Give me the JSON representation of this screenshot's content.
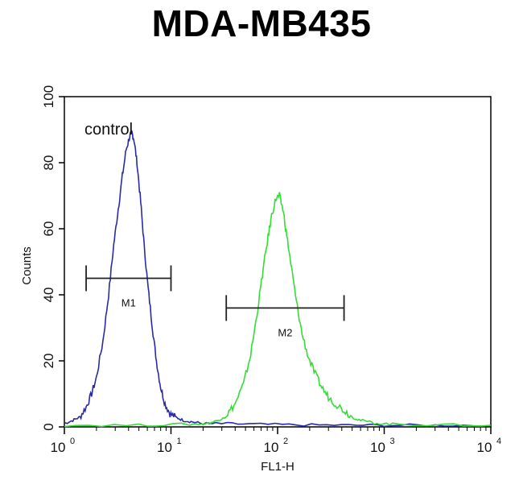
{
  "chart_data": {
    "type": "line",
    "title": "MDA-MB435",
    "annotation": "control",
    "xlabel": "FL1-H",
    "ylabel": "Counts",
    "x_scale": "log",
    "xlim": [
      1,
      10000
    ],
    "ylim": [
      0,
      100
    ],
    "x_ticks": [
      {
        "value": 1,
        "base": "10",
        "exp": "0"
      },
      {
        "value": 10,
        "base": "10",
        "exp": "1"
      },
      {
        "value": 100,
        "base": "10",
        "exp": "2"
      },
      {
        "value": 1000,
        "base": "10",
        "exp": "3"
      },
      {
        "value": 10000,
        "base": "10",
        "exp": "4"
      }
    ],
    "y_ticks": [
      "0",
      "20",
      "40",
      "60",
      "80",
      "100"
    ],
    "grid": false,
    "series": [
      {
        "color": "#2a2aa8",
        "points": [
          [
            1.0,
            1
          ],
          [
            1.2,
            2
          ],
          [
            1.4,
            3
          ],
          [
            1.6,
            6
          ],
          [
            1.8,
            10
          ],
          [
            2.0,
            15
          ],
          [
            2.3,
            26
          ],
          [
            2.6,
            40
          ],
          [
            2.9,
            55
          ],
          [
            3.2,
            66
          ],
          [
            3.5,
            76
          ],
          [
            3.8,
            84
          ],
          [
            4.1,
            88
          ],
          [
            4.3,
            89
          ],
          [
            4.5,
            87
          ],
          [
            4.8,
            80
          ],
          [
            5.2,
            68
          ],
          [
            5.6,
            55
          ],
          [
            6.1,
            42
          ],
          [
            6.7,
            30
          ],
          [
            7.3,
            20
          ],
          [
            8.0,
            12
          ],
          [
            8.8,
            7
          ],
          [
            9.8,
            4
          ],
          [
            11,
            3
          ],
          [
            13,
            2
          ],
          [
            16,
            1.5
          ],
          [
            20,
            1
          ],
          [
            30,
            1
          ],
          [
            60,
            0.8
          ],
          [
            150,
            0.6
          ],
          [
            400,
            0.5
          ],
          [
            1000,
            0.5
          ],
          [
            3000,
            0.5
          ],
          [
            10000,
            0.5
          ]
        ]
      },
      {
        "color": "#33dd33",
        "points": [
          [
            1.0,
            0.5
          ],
          [
            5,
            0.5
          ],
          [
            15,
            0.8
          ],
          [
            22,
            1
          ],
          [
            28,
            2
          ],
          [
            34,
            4
          ],
          [
            40,
            7
          ],
          [
            48,
            13
          ],
          [
            56,
            22
          ],
          [
            64,
            34
          ],
          [
            72,
            46
          ],
          [
            80,
            56
          ],
          [
            88,
            64
          ],
          [
            96,
            69
          ],
          [
            104,
            70
          ],
          [
            112,
            66
          ],
          [
            122,
            58
          ],
          [
            135,
            48
          ],
          [
            150,
            38
          ],
          [
            170,
            28
          ],
          [
            195,
            21
          ],
          [
            225,
            16
          ],
          [
            260,
            12
          ],
          [
            300,
            9
          ],
          [
            350,
            7
          ],
          [
            420,
            5
          ],
          [
            500,
            3
          ],
          [
            600,
            2
          ],
          [
            800,
            1.2
          ],
          [
            1200,
            0.8
          ],
          [
            3000,
            0.6
          ],
          [
            10000,
            0.5
          ]
        ]
      }
    ],
    "markers": [
      {
        "label": "M1",
        "x_start": 1.6,
        "x_end": 10,
        "y": 45
      },
      {
        "label": "M2",
        "x_start": 33,
        "x_end": 420,
        "y": 36
      }
    ]
  }
}
